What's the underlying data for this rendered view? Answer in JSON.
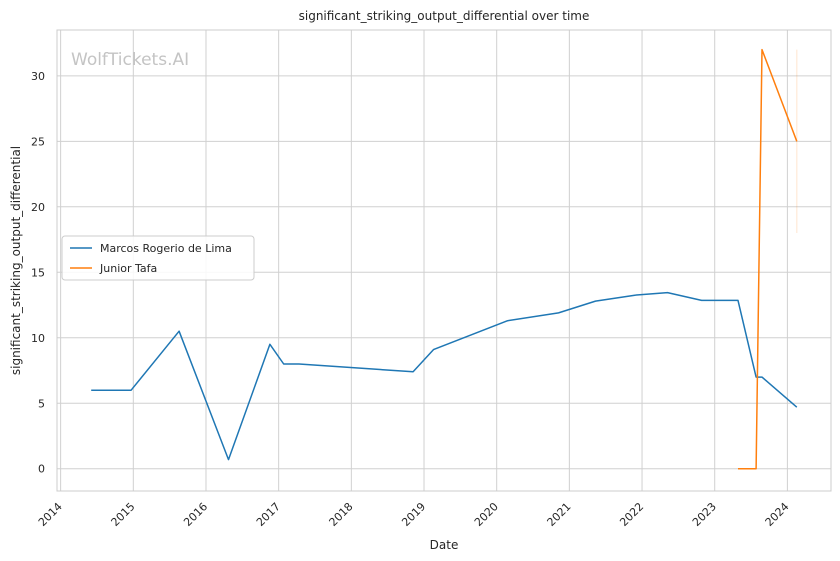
{
  "chart_data": {
    "type": "line",
    "title": "significant_striking_output_differential over time",
    "xlabel": "Date",
    "ylabel": "significant_striking_output_differential",
    "watermark": "WolfTickets.AI",
    "xlim": [
      2013.95,
      2024.6
    ],
    "ylim": [
      -1.7,
      33.5
    ],
    "x_ticks": [
      2014,
      2015,
      2016,
      2017,
      2018,
      2019,
      2020,
      2021,
      2022,
      2023,
      2024
    ],
    "x_tick_labels": [
      "2014",
      "2015",
      "2016",
      "2017",
      "2018",
      "2019",
      "2020",
      "2021",
      "2022",
      "2023",
      "2024"
    ],
    "y_ticks": [
      0,
      5,
      10,
      15,
      20,
      25,
      30
    ],
    "y_tick_labels": [
      "0",
      "5",
      "10",
      "15",
      "20",
      "25",
      "30"
    ],
    "grid": true,
    "legend_position": "center-left",
    "series": [
      {
        "name": "Marcos Rogerio de Lima",
        "color": "#1f77b4",
        "x": [
          2014.42,
          2014.97,
          2015.63,
          2016.31,
          2016.88,
          2017.07,
          2017.28,
          2018.85,
          2019.13,
          2020.15,
          2020.85,
          2021.36,
          2021.9,
          2022.35,
          2022.82,
          2023.32,
          2023.57,
          2023.65,
          2024.13
        ],
        "y": [
          6.0,
          6.0,
          10.5,
          0.7,
          9.5,
          8.0,
          8.0,
          7.4,
          9.1,
          11.3,
          11.9,
          12.8,
          13.25,
          13.45,
          12.85,
          12.85,
          7.0,
          7.0,
          4.7
        ]
      },
      {
        "name": "Junior Tafa",
        "color": "#ff7f0e",
        "x": [
          2023.32,
          2023.57,
          2023.65,
          2024.13
        ],
        "y": [
          0.0,
          0.0,
          32.0,
          25.0
        ]
      }
    ],
    "annotations": [
      {
        "type": "faint-vertical-line",
        "color": "#ff7f0e",
        "x": 2024.13,
        "y_range": [
          18.0,
          32.0
        ]
      }
    ]
  }
}
